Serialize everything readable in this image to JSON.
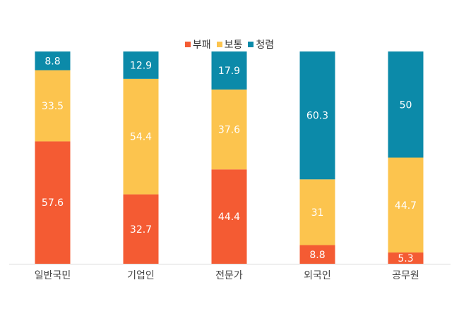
{
  "chart_data": {
    "type": "bar",
    "stacked": true,
    "categories": [
      "일반국민",
      "기업인",
      "전문가",
      "외국인",
      "공무원"
    ],
    "series": [
      {
        "name": "부패",
        "color": "#F45B33",
        "values": [
          57.6,
          32.7,
          44.4,
          8.8,
          5.3
        ]
      },
      {
        "name": "보통",
        "color": "#FCC44E",
        "values": [
          33.5,
          54.4,
          37.6,
          31,
          44.7
        ]
      },
      {
        "name": "청렴",
        "color": "#0C8AA9",
        "values": [
          8.8,
          12.9,
          17.9,
          60.3,
          50
        ]
      }
    ],
    "ylim": [
      0,
      100
    ],
    "legend": "top-center",
    "grid": false
  }
}
